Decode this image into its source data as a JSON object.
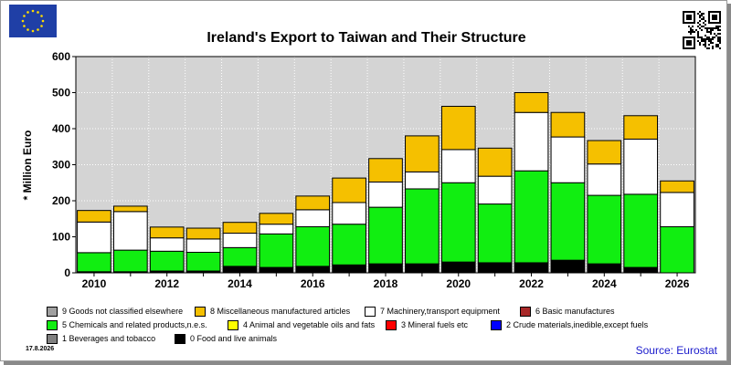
{
  "title": "Ireland's Export to Taiwan and Their Structure",
  "source": "Source: Eurostat",
  "date_stamp": "17.8.2026",
  "icons": [
    "eu-flag-icon",
    "qr-code-icon"
  ],
  "colors": {
    "plot_background": "#d4d4d4",
    "gridline": "#ffffff",
    "source_text": "#1a1acc"
  },
  "legend": [
    {
      "label": "9 Goods not classified elsewhere",
      "color": "#a0a0a0"
    },
    {
      "label": "8 Miscellaneous manufactured articles",
      "color": "#f5c000"
    },
    {
      "label": "7 Machinery,transport equipment",
      "color": "#ffffff"
    },
    {
      "label": "6 Basic manufactures",
      "color": "#a82828"
    },
    {
      "label": "5 Chemicals and related products,n.e.s.",
      "color": "#11ee11"
    },
    {
      "label": "4 Animal and vegetable oils and fats",
      "color": "#ffff00"
    },
    {
      "label": "3 Mineral fuels etc",
      "color": "#ff0000"
    },
    {
      "label": "2 Crude materials,inedible,except fuels",
      "color": "#0000ff"
    },
    {
      "label": "1 Beverages and tobacco",
      "color": "#808080"
    },
    {
      "label": "0 Food and live animals",
      "color": "#000000"
    }
  ],
  "chart_data": {
    "type": "bar",
    "stacked": true,
    "title": "Ireland's Export to Taiwan and Their Structure",
    "ylabel": "* Million Euro",
    "xlabel": "",
    "ylim": [
      0,
      600
    ],
    "yticks": [
      0,
      100,
      200,
      300,
      400,
      500,
      600
    ],
    "grid": true,
    "legend_position": "bottom",
    "categories": [
      "2010",
      "2011",
      "2012",
      "2013",
      "2014",
      "2015",
      "2016",
      "2017",
      "2018",
      "2019",
      "2020",
      "2021",
      "2022",
      "2023",
      "2024",
      "2025",
      "2026"
    ],
    "xtick_labels": [
      "2010",
      "",
      "2012",
      "",
      "2014",
      "",
      "2016",
      "",
      "2018",
      "",
      "2020",
      "",
      "2022",
      "",
      "2024",
      "",
      "2026"
    ],
    "series": [
      {
        "name": "0 Food and live animals",
        "color": "#000000",
        "values": [
          3,
          3,
          5,
          5,
          18,
          15,
          18,
          22,
          25,
          25,
          30,
          28,
          28,
          35,
          25,
          15,
          0
        ]
      },
      {
        "name": "1 Beverages and tobacco",
        "color": "#808080",
        "values": [
          0,
          0,
          0,
          0,
          0,
          0,
          0,
          0,
          0,
          0,
          0,
          0,
          0,
          0,
          0,
          0,
          0
        ]
      },
      {
        "name": "2 Crude materials,inedible,except fuels",
        "color": "#0000ff",
        "values": [
          0,
          0,
          0,
          0,
          0,
          0,
          0,
          0,
          0,
          0,
          0,
          0,
          0,
          0,
          0,
          0,
          0
        ]
      },
      {
        "name": "3 Mineral fuels etc",
        "color": "#ff0000",
        "values": [
          0,
          0,
          0,
          0,
          0,
          0,
          0,
          0,
          0,
          0,
          0,
          0,
          0,
          0,
          0,
          0,
          0
        ]
      },
      {
        "name": "4 Animal and vegetable oils and fats",
        "color": "#ffff00",
        "values": [
          0,
          0,
          0,
          0,
          0,
          0,
          0,
          0,
          0,
          0,
          0,
          0,
          0,
          0,
          0,
          0,
          0
        ]
      },
      {
        "name": "5 Chemicals and related products,n.e.s.",
        "color": "#11ee11",
        "values": [
          53,
          60,
          55,
          52,
          52,
          93,
          110,
          113,
          157,
          208,
          220,
          163,
          255,
          215,
          190,
          203,
          128
        ]
      },
      {
        "name": "6 Basic manufactures",
        "color": "#a82828",
        "values": [
          0,
          0,
          0,
          0,
          0,
          0,
          0,
          0,
          0,
          0,
          0,
          0,
          0,
          0,
          0,
          0,
          0
        ]
      },
      {
        "name": "7 Machinery,transport equipment",
        "color": "#ffffff",
        "values": [
          85,
          107,
          37,
          37,
          40,
          27,
          47,
          60,
          70,
          47,
          92,
          77,
          162,
          127,
          87,
          153,
          95
        ]
      },
      {
        "name": "8 Miscellaneous manufactured articles",
        "color": "#f5c000",
        "values": [
          32,
          15,
          30,
          30,
          30,
          30,
          38,
          68,
          65,
          100,
          120,
          78,
          55,
          68,
          65,
          65,
          32
        ]
      },
      {
        "name": "9 Goods not classified elsewhere",
        "color": "#a0a0a0",
        "values": [
          0,
          0,
          0,
          0,
          0,
          0,
          0,
          0,
          0,
          0,
          0,
          0,
          0,
          0,
          0,
          0,
          0
        ]
      }
    ]
  }
}
